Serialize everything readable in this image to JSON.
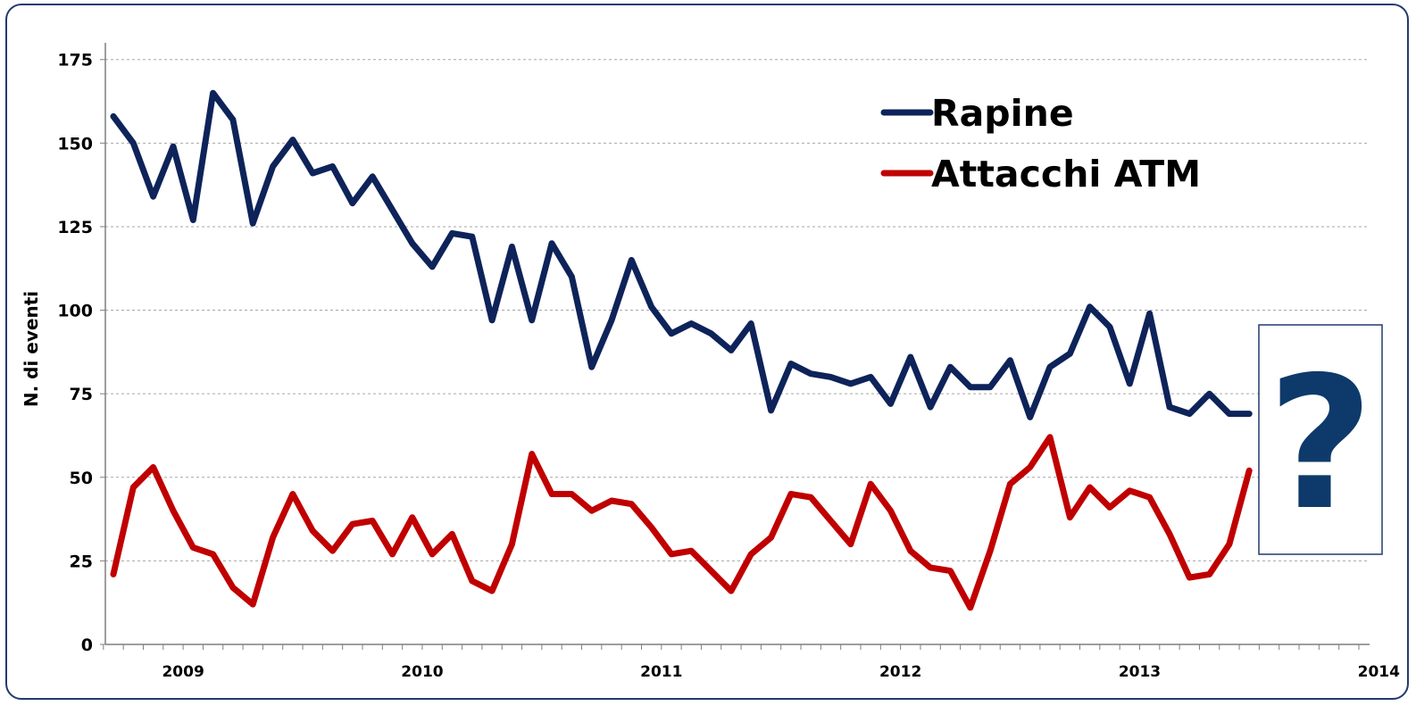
{
  "chart_data": {
    "type": "line",
    "ylabel": "N. di eventi",
    "ylim": [
      0,
      180
    ],
    "yticks": [
      0,
      25,
      50,
      75,
      100,
      125,
      150,
      175
    ],
    "x_start": "2008-11",
    "year_labels": [
      "2009",
      "2010",
      "2011",
      "2012",
      "2013",
      "2014"
    ],
    "grid": true,
    "legend_position": "top-right",
    "series": [
      {
        "name": "Rapine",
        "color": "#0d2359",
        "values": [
          158,
          150,
          134,
          149,
          127,
          165,
          157,
          126,
          143,
          151,
          141,
          143,
          132,
          140,
          130,
          120,
          113,
          123,
          122,
          97,
          119,
          97,
          120,
          110,
          83,
          97,
          115,
          101,
          93,
          96,
          93,
          88,
          96,
          70,
          84,
          81,
          80,
          78,
          80,
          72,
          86,
          71,
          83,
          77,
          77,
          85,
          68,
          83,
          87,
          101,
          95,
          78,
          99,
          71,
          69,
          75,
          69,
          69
        ]
      },
      {
        "name": "Attacchi ATM",
        "color": "#c00000",
        "values": [
          21,
          47,
          53,
          40,
          29,
          27,
          17,
          12,
          32,
          45,
          34,
          28,
          36,
          37,
          27,
          38,
          27,
          33,
          19,
          16,
          30,
          57,
          45,
          45,
          40,
          43,
          42,
          35,
          27,
          28,
          22,
          16,
          27,
          32,
          45,
          44,
          37,
          30,
          48,
          40,
          28,
          23,
          22,
          11,
          28,
          48,
          53,
          62,
          38,
          47,
          41,
          46,
          44,
          33,
          20,
          21,
          30,
          52
        ]
      }
    ]
  },
  "question_mark": "?"
}
